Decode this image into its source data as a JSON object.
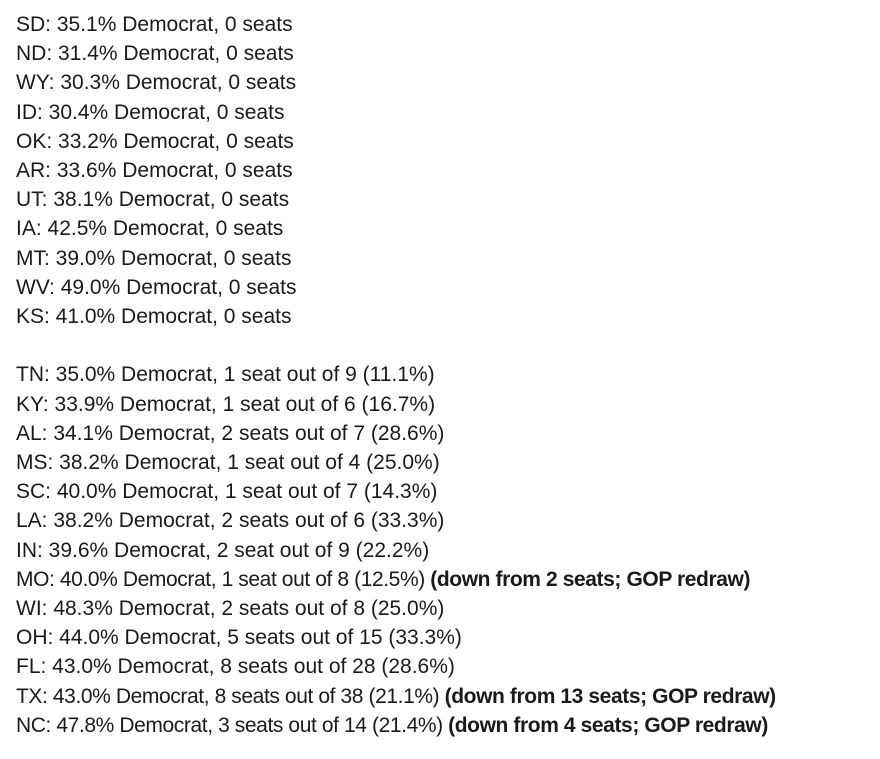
{
  "page": {
    "background": "#ffffff",
    "text_color": "#1a1a1a"
  },
  "content": {
    "sections": [
      {
        "name": "zero-seat-states",
        "lines": [
          {
            "main": "SD: 35.1% Democrat, 0 seats",
            "bold": ""
          },
          {
            "main": "ND: 31.4% Democrat, 0 seats",
            "bold": ""
          },
          {
            "main": "WY: 30.3% Democrat, 0 seats",
            "bold": ""
          },
          {
            "main": "ID: 30.4% Democrat, 0 seats",
            "bold": ""
          },
          {
            "main": "OK: 33.2% Democrat, 0 seats",
            "bold": ""
          },
          {
            "main": "AR: 33.6% Democrat, 0 seats",
            "bold": ""
          },
          {
            "main": "UT: 38.1% Democrat, 0 seats",
            "bold": ""
          },
          {
            "main": "IA: 42.5% Democrat, 0 seats",
            "bold": ""
          },
          {
            "main": "MT: 39.0% Democrat, 0 seats",
            "bold": ""
          },
          {
            "main": "WV: 49.0% Democrat, 0 seats",
            "bold": ""
          },
          {
            "main": "KS: 41.0% Democrat, 0 seats",
            "bold": ""
          }
        ]
      },
      {
        "name": "states-with-seats",
        "lines": [
          {
            "main": "TN: 35.0% Democrat, 1 seat out of 9 (11.1%)",
            "bold": ""
          },
          {
            "main": "KY: 33.9% Democrat, 1 seat out of 6 (16.7%)",
            "bold": ""
          },
          {
            "main": "AL: 34.1% Democrat, 2 seats out of 7 (28.6%)",
            "bold": ""
          },
          {
            "main": "MS: 38.2% Democrat, 1 seat out of 4 (25.0%)",
            "bold": ""
          },
          {
            "main": "SC: 40.0% Democrat, 1 seat out of 7 (14.3%)",
            "bold": ""
          },
          {
            "main": "LA: 38.2% Democrat, 2 seats out of 6 (33.3%)",
            "bold": ""
          },
          {
            "main": "IN: 39.6% Democrat, 2 seat out of 9 (22.2%)",
            "bold": ""
          },
          {
            "main": "MO: 40.0% Democrat, 1 seat out of 8 (12.5%) ",
            "bold": "(down from 2 seats; GOP redraw)"
          },
          {
            "main": "WI: 48.3% Democrat, 2 seats out of 8 (25.0%)",
            "bold": ""
          },
          {
            "main": "OH: 44.0% Democrat, 5 seats out of 15 (33.3%)",
            "bold": ""
          },
          {
            "main": "FL: 43.0% Democrat, 8 seats out of 28 (28.6%)",
            "bold": ""
          },
          {
            "main": "TX: 43.0% Democrat, 8 seats out of 38 (21.1%) ",
            "bold": "(down from 13 seats; GOP redraw)"
          },
          {
            "main": "NC: 47.8% Democrat, 3 seats out of 14 (21.4%) ",
            "bold": "(down from 4 seats; GOP redraw)"
          }
        ]
      }
    ]
  }
}
